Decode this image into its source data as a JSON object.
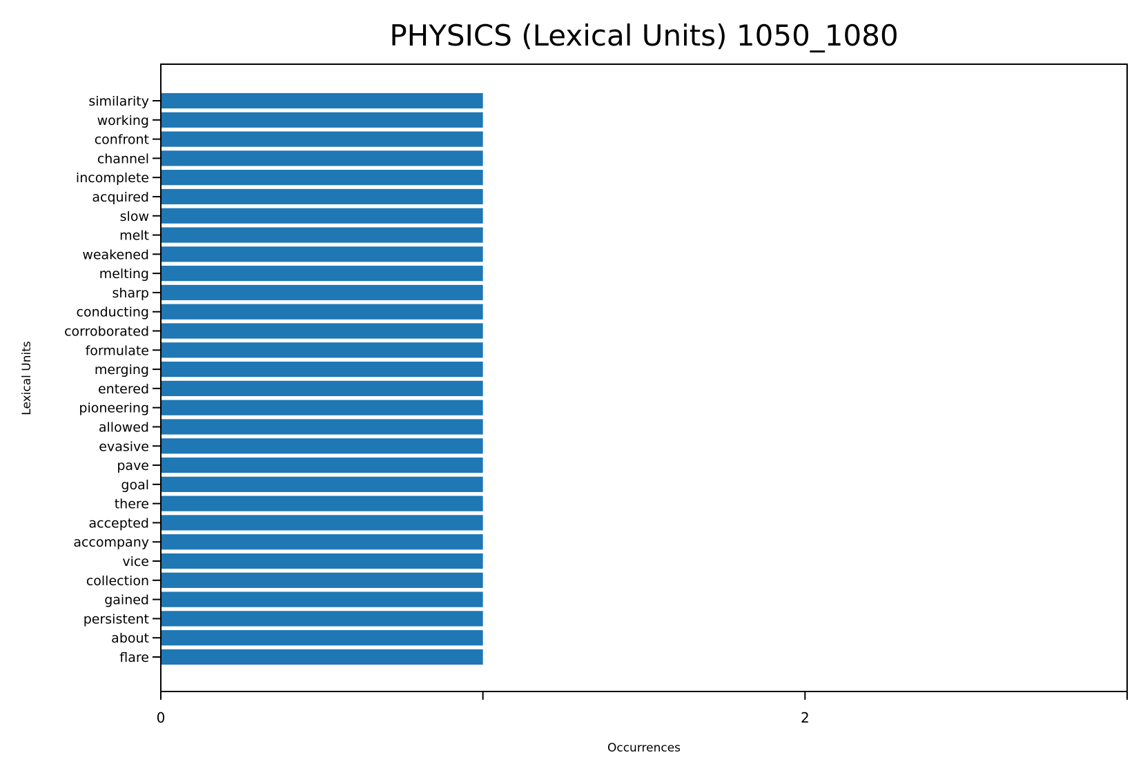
{
  "colors": {
    "bar": "#1f77b4",
    "axis": "#000000",
    "background": "#ffffff"
  },
  "chart_data": {
    "type": "bar",
    "orientation": "horizontal",
    "title": "PHYSICS (Lexical Units) 1050_1080",
    "xlabel": "Occurrences",
    "ylabel": "Lexical Units",
    "xlim": [
      0,
      3
    ],
    "x_ticks": [
      0,
      1,
      2,
      3
    ],
    "x_tick_labels": [
      "0",
      "",
      "2",
      ""
    ],
    "grid": false,
    "categories": [
      "similarity",
      "working",
      "confront",
      "channel",
      "incomplete",
      "acquired",
      "slow",
      "melt",
      "weakened",
      "melting",
      "sharp",
      "conducting",
      "corroborated",
      "formulate",
      "merging",
      "entered",
      "pioneering",
      "allowed",
      "evasive",
      "pave",
      "goal",
      "there",
      "accepted",
      "accompany",
      "vice",
      "collection",
      "gained",
      "persistent",
      "about",
      "flare"
    ],
    "values": [
      1,
      1,
      1,
      1,
      1,
      1,
      1,
      1,
      1,
      1,
      1,
      1,
      1,
      1,
      1,
      1,
      1,
      1,
      1,
      1,
      1,
      1,
      1,
      1,
      1,
      1,
      1,
      1,
      1,
      1
    ]
  }
}
